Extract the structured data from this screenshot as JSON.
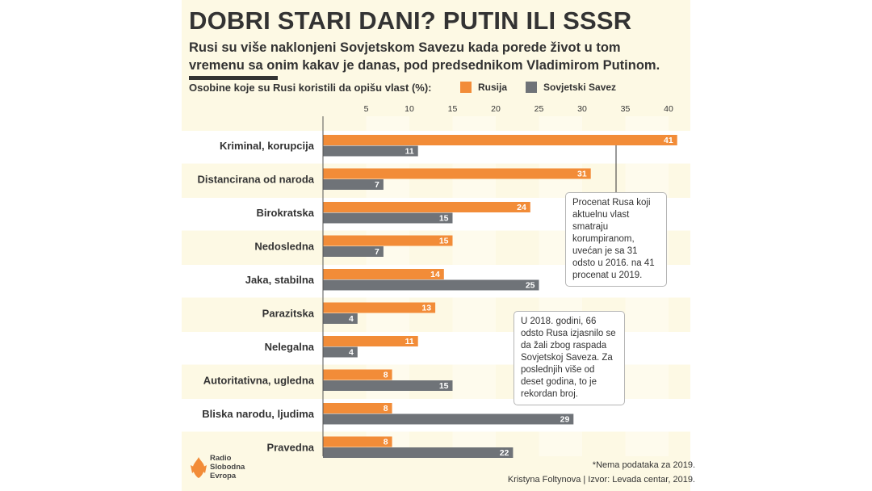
{
  "header": {
    "title": "DOBRI STARI DANI? PUTIN ILI SSSR",
    "subtitle": "Rusi su više naklonjeni Sovjetskom Savezu kada porede život u tom vremenu sa onim kakav je danas, pod predsednikom Vladimirom Putinom."
  },
  "colors": {
    "rusija": "#f28c38",
    "ssr": "#6f7378",
    "panel": "#fdf9e4",
    "text": "#333333"
  },
  "chart_data": {
    "type": "bar",
    "orientation": "horizontal",
    "ylabel": "Osobine koje su Rusi koristili da opišu vlast (%):",
    "xlim": [
      0,
      41
    ],
    "xticks": [
      5,
      10,
      15,
      20,
      25,
      30,
      35,
      40
    ],
    "legend_position": "top-right",
    "categories": [
      "Kriminal, korupcija",
      "Distancirana od naroda",
      "Birokratska",
      "Nedosledna",
      "Jaka, stabilna",
      "Parazitska",
      "Nelegalna",
      "Autoritativna, ugledna",
      "Bliska narodu, ljudima",
      "Pravedna"
    ],
    "series": [
      {
        "name": "Rusija",
        "values": [
          41,
          31,
          24,
          15,
          14,
          13,
          11,
          8,
          8,
          8
        ]
      },
      {
        "name": "Sovjetski Savez",
        "values": [
          11,
          7,
          15,
          7,
          25,
          4,
          4,
          15,
          29,
          22
        ]
      }
    ]
  },
  "annotations": {
    "note1": "Procenat Rusa koji aktuelnu vlast smatraju korumpiranom, uvećan je sa 31 odsto u 2016. na 41 procenat u 2019.",
    "note2": "U 2018. godini, 66 odsto Rusa izjasnilo se da žali zbog raspada Sovjetskoj Saveza. Za poslednjih više od deset godina, to je rekordan broj."
  },
  "footer": {
    "logo_text": "Radio Slobodna Evropa",
    "footnote": "*Nema podataka za 2019.",
    "credit": "Kristyna Foltynova | Izvor: Levada centar, 2019."
  }
}
